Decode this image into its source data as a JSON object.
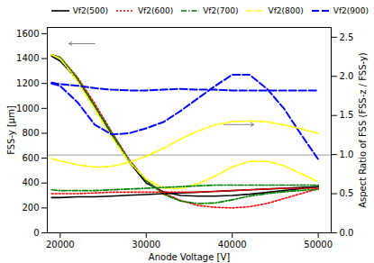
{
  "chart_data": {
    "type": "line",
    "xlabel": "Anode Voltage [V]",
    "ylabel": "FSS-y [μm]",
    "y2label": "Aspect Ratio of FSS (FSS-z / FSS-y)",
    "x": [
      19000,
      20000,
      22000,
      24000,
      26000,
      28000,
      30000,
      32000,
      34000,
      36000,
      38000,
      40000,
      42000,
      44000,
      46000,
      48000,
      50000
    ],
    "series": [
      {
        "name": "Vf2(500)",
        "color": "black",
        "line_style": "solid",
        "values": [
          1420,
          1380,
          1230,
          1020,
          790,
          570,
          400,
          330,
          300,
          295,
          295,
          300,
          310,
          325,
          340,
          355,
          370
        ]
      },
      {
        "name": "Vf2(600)",
        "color": "red",
        "line_style": "dotted",
        "values": [
          1430,
          1410,
          1250,
          1040,
          810,
          590,
          420,
          320,
          260,
          220,
          205,
          200,
          210,
          235,
          275,
          315,
          355
        ]
      },
      {
        "name": "Vf2(700)",
        "color": "green",
        "line_style": "dashdot",
        "values": [
          1430,
          1410,
          1240,
          1020,
          800,
          580,
          420,
          310,
          255,
          235,
          240,
          265,
          295,
          315,
          330,
          340,
          350
        ]
      },
      {
        "name": "Vf2(800)",
        "color": "yellow",
        "line_style": "dashdot",
        "values": [
          1430,
          1400,
          1220,
          990,
          770,
          570,
          430,
          360,
          355,
          395,
          455,
          530,
          575,
          575,
          540,
          475,
          410
        ]
      },
      {
        "name": "Vf2(900)",
        "color": "blue",
        "line_style": "dashed",
        "values": [
          1200,
          1180,
          1050,
          870,
          790,
          800,
          840,
          890,
          980,
          1080,
          1180,
          1270,
          1270,
          1160,
          1000,
          790,
          590
        ]
      },
      {
        "color": "black",
        "line_style": "solid",
        "axis": "y2",
        "values": [
          0.45,
          0.45,
          0.46,
          0.46,
          0.47,
          0.48,
          0.49,
          0.5,
          0.51,
          0.52,
          0.53,
          0.54,
          0.55,
          0.56,
          0.57,
          0.58,
          0.59
        ]
      },
      {
        "color": "red",
        "line_style": "dotted",
        "axis": "y2",
        "values": [
          0.5,
          0.5,
          0.5,
          0.51,
          0.52,
          0.52,
          0.52,
          0.52,
          0.52,
          0.52,
          0.53,
          0.54,
          0.55,
          0.56,
          0.57,
          0.57,
          0.57
        ]
      },
      {
        "color": "green",
        "line_style": "dashdot",
        "axis": "y2",
        "values": [
          0.55,
          0.54,
          0.54,
          0.54,
          0.55,
          0.56,
          0.57,
          0.58,
          0.59,
          0.6,
          0.61,
          0.61,
          0.61,
          0.61,
          0.61,
          0.61,
          0.61
        ]
      },
      {
        "color": "yellow",
        "line_style": "dashdot",
        "axis": "y2",
        "values": [
          0.95,
          0.92,
          0.87,
          0.84,
          0.85,
          0.9,
          0.98,
          1.08,
          1.2,
          1.3,
          1.38,
          1.42,
          1.43,
          1.42,
          1.38,
          1.33,
          1.27
        ]
      },
      {
        "color": "blue",
        "line_style": "dashed",
        "axis": "y2",
        "values": [
          1.92,
          1.9,
          1.88,
          1.85,
          1.83,
          1.82,
          1.82,
          1.83,
          1.84,
          1.83,
          1.83,
          1.82,
          1.82,
          1.82,
          1.82,
          1.82,
          1.82
        ]
      }
    ],
    "xlim": [
      18500,
      51500
    ],
    "ylim": [
      0,
      1650
    ],
    "y2lim": [
      0.0,
      2.625
    ],
    "xticks": [
      20000,
      30000,
      40000,
      50000
    ],
    "yticks": [
      0,
      200,
      400,
      600,
      800,
      1000,
      1200,
      1400,
      1600
    ],
    "y2ticks": [
      {
        "value": 0,
        "label": "0.0"
      },
      0.5,
      {
        "value": 1,
        "label": "1.0"
      },
      1.5,
      {
        "value": 2,
        "label": "2.0"
      },
      2.5
    ],
    "legend": "upper right",
    "hline": {
      "y": 625,
      "color": "gray"
    },
    "arrows": [
      {
        "x": [
          24000,
          21000
        ],
        "y": [
          1520,
          1520
        ],
        "color": "gray"
      },
      {
        "x": [
          39000,
          42500
        ],
        "y": [
          870,
          870
        ],
        "color": "gray"
      }
    ]
  }
}
